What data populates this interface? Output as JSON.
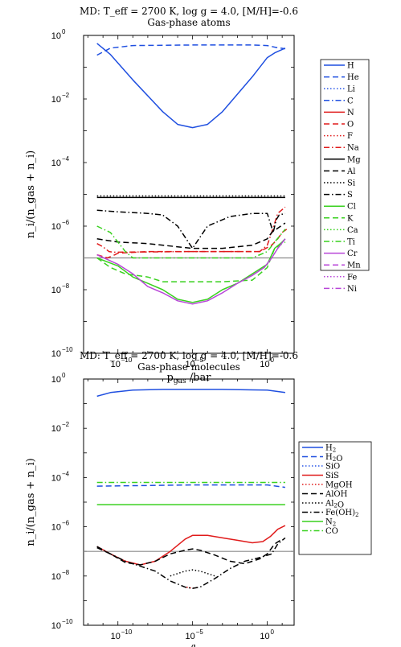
{
  "chart_data": [
    {
      "type": "line",
      "title": "MD: T_eff = 2700 K, log g = 4.0, [M/H]=-0.6",
      "subtitle": "Gas-phase atoms",
      "xlabel": "p_gas /bar",
      "ylabel": "n_i/(n_gas + n_i)",
      "xscale": "log",
      "yscale": "log",
      "xlim": [
        -12.3,
        1.8
      ],
      "ylim": [
        -10,
        0
      ],
      "xticks": [
        -10,
        -5,
        0
      ],
      "yticks": [
        0,
        -2,
        -4,
        -6,
        -8,
        -10
      ],
      "legend_position": "right",
      "reference_line": {
        "y": -7,
        "color": "#8c8c8c"
      },
      "series": [
        {
          "name": "H",
          "color": "#1f4fe0",
          "style": "solid",
          "values": [
            [
              -11.4,
              -0.25
            ],
            [
              -10.5,
              -0.6
            ],
            [
              -9,
              -1.4
            ],
            [
              -7,
              -2.4
            ],
            [
              -6,
              -2.8
            ],
            [
              -5,
              -2.9
            ],
            [
              -4,
              -2.8
            ],
            [
              -3,
              -2.4
            ],
            [
              -1,
              -1.3
            ],
            [
              0,
              -0.7
            ],
            [
              0.5,
              -0.55
            ],
            [
              1.2,
              -0.4
            ]
          ]
        },
        {
          "name": "He",
          "color": "#1f4fe0",
          "style": "dashed",
          "values": [
            [
              -11.4,
              -0.62
            ],
            [
              -10.5,
              -0.4
            ],
            [
              -9,
              -0.32
            ],
            [
              -5,
              -0.3
            ],
            [
              -1,
              -0.3
            ],
            [
              0,
              -0.32
            ],
            [
              0.6,
              -0.38
            ],
            [
              1.2,
              -0.42
            ]
          ]
        },
        {
          "name": "Li",
          "color": "#2a57e8",
          "style": "dotted",
          "values": []
        },
        {
          "name": "C",
          "color": "#1f4fe0",
          "style": "dashdot",
          "values": []
        },
        {
          "name": "N",
          "color": "#e01b1b",
          "style": "solid",
          "values": []
        },
        {
          "name": "O",
          "color": "#e01b1b",
          "style": "dashed",
          "values": [
            [
              -11.4,
              -6.9
            ],
            [
              -10.7,
              -7.0
            ],
            [
              -10.2,
              -6.9
            ],
            [
              -10,
              -6.85
            ],
            [
              -8,
              -6.8
            ],
            [
              -5,
              -6.8
            ],
            [
              -2,
              -6.8
            ],
            [
              -0.5,
              -6.8
            ],
            [
              0.3,
              -6.6
            ],
            [
              0.7,
              -6.4
            ],
            [
              1,
              -6.2
            ],
            [
              1.3,
              -6.1
            ]
          ]
        },
        {
          "name": "F",
          "color": "#e01b1b",
          "style": "dotted",
          "values": []
        },
        {
          "name": "Na",
          "color": "#e01b1b",
          "style": "dashdot",
          "values": [
            [
              -11.4,
              -6.55
            ],
            [
              -11,
              -6.65
            ],
            [
              -10.6,
              -6.8
            ],
            [
              -10.3,
              -6.82
            ],
            [
              -5,
              -6.8
            ],
            [
              -0.5,
              -6.8
            ],
            [
              0,
              -6.6
            ],
            [
              0.3,
              -6.2
            ],
            [
              0.7,
              -5.6
            ],
            [
              1.2,
              -5.4
            ]
          ]
        },
        {
          "name": "Mg",
          "color": "#000000",
          "style": "solid",
          "values": [
            [
              -11.4,
              -5.1
            ],
            [
              -5,
              -5.1
            ],
            [
              0,
              -5.1
            ],
            [
              1.2,
              -5.1
            ]
          ]
        },
        {
          "name": "Al",
          "color": "#000000",
          "style": "dashed",
          "values": [
            [
              -11.4,
              -6.4
            ],
            [
              -10,
              -6.5
            ],
            [
              -8,
              -6.55
            ],
            [
              -6,
              -6.65
            ],
            [
              -5,
              -6.7
            ],
            [
              -3,
              -6.7
            ],
            [
              -1,
              -6.6
            ],
            [
              0,
              -6.4
            ],
            [
              0.3,
              -6.2
            ],
            [
              0.6,
              -6.1
            ],
            [
              1.2,
              -5.9
            ]
          ]
        },
        {
          "name": "Si",
          "color": "#000000",
          "style": "dotted",
          "values": [
            [
              -11.4,
              -5.05
            ],
            [
              -5,
              -5.05
            ],
            [
              0,
              -5.05
            ],
            [
              1.2,
              -5.05
            ]
          ]
        },
        {
          "name": "S",
          "color": "#000000",
          "style": "dashdot",
          "values": [
            [
              -11.4,
              -5.5
            ],
            [
              -10,
              -5.55
            ],
            [
              -8,
              -5.6
            ],
            [
              -7,
              -5.65
            ],
            [
              -6,
              -6.0
            ],
            [
              -5,
              -6.7
            ],
            [
              -4,
              -6.0
            ],
            [
              -2.5,
              -5.7
            ],
            [
              -1,
              -5.6
            ],
            [
              0,
              -5.6
            ],
            [
              0.4,
              -6.2
            ],
            [
              0.6,
              -5.8
            ],
            [
              0.8,
              -5.65
            ],
            [
              1.2,
              -5.6
            ]
          ]
        },
        {
          "name": "Cl",
          "color": "#39d11f",
          "style": "solid",
          "values": [
            [
              -11.4,
              -7.0
            ],
            [
              -10,
              -7.25
            ],
            [
              -9,
              -7.6
            ],
            [
              -8,
              -7.8
            ],
            [
              -7,
              -8.0
            ],
            [
              -6,
              -8.3
            ],
            [
              -5,
              -8.4
            ],
            [
              -4,
              -8.3
            ],
            [
              -3,
              -8.0
            ],
            [
              -2,
              -7.8
            ],
            [
              -1,
              -7.5
            ],
            [
              0,
              -7.2
            ],
            [
              0.5,
              -6.7
            ],
            [
              1,
              -6.5
            ],
            [
              1.2,
              -6.4
            ]
          ]
        },
        {
          "name": "K",
          "color": "#39d11f",
          "style": "dashed",
          "values": [
            [
              -11.4,
              -7.0
            ],
            [
              -10.5,
              -7.3
            ],
            [
              -9.5,
              -7.5
            ],
            [
              -8,
              -7.6
            ],
            [
              -7,
              -7.75
            ],
            [
              -5,
              -7.75
            ],
            [
              -3,
              -7.75
            ],
            [
              -1,
              -7.7
            ],
            [
              0,
              -7.3
            ],
            [
              0.5,
              -6.7
            ],
            [
              1.2,
              -6.5
            ]
          ]
        },
        {
          "name": "Ca",
          "color": "#39d11f",
          "style": "dotted",
          "values": []
        },
        {
          "name": "Ti",
          "color": "#39d11f",
          "style": "dashdot",
          "values": [
            [
              -11.4,
              -6.0
            ],
            [
              -10.5,
              -6.2
            ],
            [
              -9.5,
              -6.8
            ],
            [
              -9,
              -7.0
            ],
            [
              -5,
              -7.0
            ],
            [
              -1,
              -7.0
            ],
            [
              0,
              -6.8
            ],
            [
              0.5,
              -6.5
            ],
            [
              1.2,
              -6.1
            ]
          ]
        },
        {
          "name": "Cr",
          "color": "#b845d8",
          "style": "solid",
          "values": [
            [
              -11.4,
              -6.9
            ],
            [
              -10,
              -7.2
            ],
            [
              -9,
              -7.5
            ],
            [
              -8,
              -7.9
            ],
            [
              -7,
              -8.1
            ],
            [
              -6,
              -8.35
            ],
            [
              -5,
              -8.45
            ],
            [
              -4,
              -8.35
            ],
            [
              -3,
              -8.1
            ],
            [
              -2,
              -7.8
            ],
            [
              -1,
              -7.55
            ],
            [
              -0.2,
              -7.3
            ],
            [
              0.3,
              -7.0
            ],
            [
              0.7,
              -6.7
            ],
            [
              1.2,
              -6.4
            ]
          ]
        },
        {
          "name": "Mn",
          "color": "#b845d8",
          "style": "dashed",
          "values": []
        },
        {
          "name": "Fe",
          "color": "#b845d8",
          "style": "dotted",
          "values": []
        },
        {
          "name": "Ni",
          "color": "#b845d8",
          "style": "dashdot",
          "values": []
        }
      ]
    },
    {
      "type": "line",
      "title": "MD: T_eff = 2700 K, log g = 4.0, [M/H]=-0.6",
      "subtitle": "Gas-phase molecules",
      "xlabel": "p_gas /bar",
      "ylabel": "n_i/(n_gas + n_i)",
      "xscale": "log",
      "yscale": "log",
      "xlim": [
        -12.3,
        1.8
      ],
      "ylim": [
        -10,
        0
      ],
      "xticks": [
        -10,
        -5,
        0
      ],
      "yticks": [
        0,
        -2,
        -4,
        -6,
        -8,
        -10
      ],
      "legend_position": "right",
      "reference_line": {
        "y": -7,
        "color": "#8c8c8c"
      },
      "series": [
        {
          "name": "H2",
          "color": "#1f4fe0",
          "style": "solid",
          "values": [
            [
              -11.4,
              -0.7
            ],
            [
              -10.5,
              -0.55
            ],
            [
              -9,
              -0.45
            ],
            [
              -7,
              -0.42
            ],
            [
              -5,
              -0.42
            ],
            [
              -3,
              -0.42
            ],
            [
              -1,
              -0.44
            ],
            [
              0,
              -0.45
            ],
            [
              0.6,
              -0.5
            ],
            [
              1.2,
              -0.55
            ]
          ]
        },
        {
          "name": "H2O",
          "color": "#1f4fe0",
          "style": "dashed",
          "values": [
            [
              -11.4,
              -4.35
            ],
            [
              -5,
              -4.3
            ],
            [
              0,
              -4.3
            ],
            [
              0.6,
              -4.35
            ],
            [
              1.2,
              -4.4
            ]
          ]
        },
        {
          "name": "SiO",
          "color": "#2a57e8",
          "style": "dotted",
          "values": []
        },
        {
          "name": "SiS",
          "color": "#e01b1b",
          "style": "solid",
          "values": [
            [
              -11.4,
              -6.8
            ],
            [
              -10.5,
              -7.1
            ],
            [
              -9.5,
              -7.4
            ],
            [
              -8.5,
              -7.55
            ],
            [
              -7.5,
              -7.4
            ],
            [
              -6.5,
              -7.0
            ],
            [
              -5.5,
              -6.5
            ],
            [
              -5,
              -6.35
            ],
            [
              -4,
              -6.35
            ],
            [
              -3,
              -6.45
            ],
            [
              -2,
              -6.55
            ],
            [
              -1,
              -6.65
            ],
            [
              -0.3,
              -6.6
            ],
            [
              0.2,
              -6.4
            ],
            [
              0.7,
              -6.1
            ],
            [
              1.2,
              -5.95
            ]
          ]
        },
        {
          "name": "MgOH",
          "color": "#e01b1b",
          "style": "dotted",
          "values": [
            [
              -5.4,
              -8.45
            ],
            [
              -5,
              -8.5
            ],
            [
              -4.6,
              -8.45
            ]
          ]
        },
        {
          "name": "AlOH",
          "color": "#000000",
          "style": "dashed",
          "values": [
            [
              -11.4,
              -6.85
            ],
            [
              -10.5,
              -7.1
            ],
            [
              -9.5,
              -7.45
            ],
            [
              -8.5,
              -7.55
            ],
            [
              -7.5,
              -7.4
            ],
            [
              -6.5,
              -7.1
            ],
            [
              -5.5,
              -6.95
            ],
            [
              -5,
              -6.9
            ],
            [
              -4.5,
              -6.95
            ],
            [
              -3.5,
              -7.15
            ],
            [
              -2.5,
              -7.4
            ],
            [
              -1.5,
              -7.5
            ],
            [
              -0.5,
              -7.3
            ],
            [
              0,
              -7.1
            ],
            [
              0.5,
              -6.7
            ],
            [
              1,
              -6.5
            ]
          ]
        },
        {
          "name": "Al2O",
          "color": "#000000",
          "style": "dotted",
          "values": [
            [
              -6.5,
              -8.0
            ],
            [
              -5.5,
              -7.8
            ],
            [
              -5,
              -7.75
            ],
            [
              -4.5,
              -7.8
            ],
            [
              -3.5,
              -8.0
            ]
          ]
        },
        {
          "name": "Fe(OH)2",
          "color": "#000000",
          "style": "dashdot",
          "values": [
            [
              -11.4,
              -6.8
            ],
            [
              -10.5,
              -7.1
            ],
            [
              -9.5,
              -7.4
            ],
            [
              -8.5,
              -7.6
            ],
            [
              -7.5,
              -7.8
            ],
            [
              -6.5,
              -8.2
            ],
            [
              -5.5,
              -8.45
            ],
            [
              -5,
              -8.5
            ],
            [
              -4.5,
              -8.45
            ],
            [
              -3.5,
              -8.1
            ],
            [
              -2.5,
              -7.7
            ],
            [
              -1.5,
              -7.4
            ],
            [
              -0.5,
              -7.25
            ],
            [
              0.3,
              -7.1
            ],
            [
              0.7,
              -6.7
            ],
            [
              1.2,
              -6.45
            ]
          ]
        },
        {
          "name": "N2",
          "color": "#39d11f",
          "style": "solid",
          "values": [
            [
              -11.4,
              -5.1
            ],
            [
              -5,
              -5.1
            ],
            [
              0,
              -5.1
            ],
            [
              1.2,
              -5.1
            ]
          ]
        },
        {
          "name": "CO",
          "color": "#39d11f",
          "style": "dashdot",
          "values": [
            [
              -11.4,
              -4.2
            ],
            [
              -5,
              -4.2
            ],
            [
              0,
              -4.2
            ],
            [
              1.2,
              -4.2
            ]
          ]
        }
      ]
    }
  ]
}
